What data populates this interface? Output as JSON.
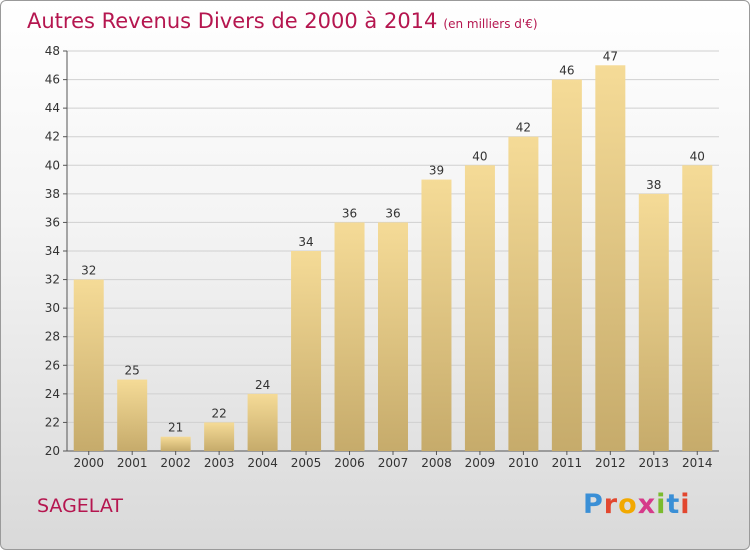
{
  "header": {
    "title": "Autres Revenus Divers de 2000 à 2014",
    "unit": "(en milliers d'€)"
  },
  "footer": {
    "place": "SAGELAT",
    "logo_text": "Proxiti"
  },
  "colors": {
    "title": "#b5164f",
    "bar_top": "#f5db97",
    "bar_bottom": "#c6ab6b",
    "grid": "#d0d0d0",
    "axis": "#555555"
  },
  "chart_data": {
    "type": "bar",
    "title": "Autres Revenus Divers de 2000 à 2014",
    "subtitle": "(en milliers d'€)",
    "xlabel": "",
    "ylabel": "",
    "categories": [
      "2000",
      "2001",
      "2002",
      "2003",
      "2004",
      "2005",
      "2006",
      "2007",
      "2008",
      "2009",
      "2010",
      "2011",
      "2012",
      "2013",
      "2014"
    ],
    "values": [
      32,
      25,
      21,
      22,
      24,
      34,
      36,
      36,
      39,
      40,
      42,
      46,
      47,
      38,
      40
    ],
    "ylim": [
      20,
      48
    ],
    "yticks": [
      20,
      22,
      24,
      26,
      28,
      30,
      32,
      34,
      36,
      38,
      40,
      42,
      44,
      46,
      48
    ],
    "grid": true,
    "data_labels": true
  }
}
